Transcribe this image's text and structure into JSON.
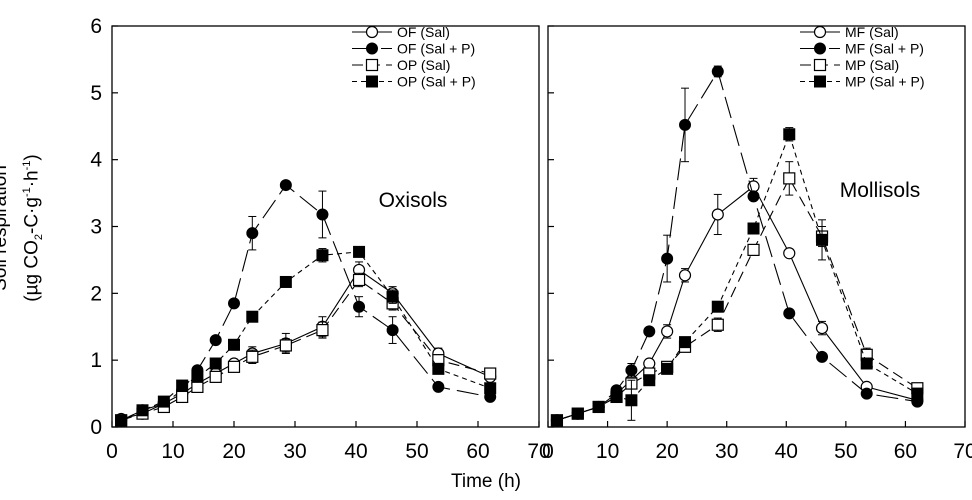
{
  "axis_titles": {
    "x": "Time (h)",
    "y_line1": "Soil respiration",
    "y_prefix": "(µg CO",
    "y_sub": "2",
    "y_mid1": "-C·g",
    "y_sup1": "-1",
    "y_mid2": "·h",
    "y_sup2": "-1",
    "y_suffix": ")"
  },
  "chart_data": [
    {
      "type": "line",
      "annotation": "Oxisols",
      "xlabel": "Time (h)",
      "ylabel": "Soil respiration (µg CO2-C·g-1·h-1)",
      "xlim": [
        0,
        70
      ],
      "ylim": [
        0,
        6
      ],
      "xticks": [
        0,
        10,
        20,
        30,
        40,
        50,
        60,
        70
      ],
      "yticks": [
        0,
        1,
        2,
        3,
        4,
        5,
        6
      ],
      "grid": false,
      "legend_position": "top-right",
      "series": [
        {
          "name": "OF (Sal)",
          "marker": "open-circle",
          "dash": "solid",
          "x": [
            1.5,
            5,
            8.5,
            11.5,
            14,
            17,
            20,
            23,
            28.5,
            34.5,
            40.5,
            46,
            53.5,
            62
          ],
          "y": [
            0.12,
            0.2,
            0.35,
            0.5,
            0.65,
            0.8,
            0.95,
            1.1,
            1.25,
            1.5,
            2.35,
            2.0,
            1.1,
            0.75
          ],
          "err": [
            0,
            0,
            0,
            0,
            0,
            0,
            0,
            0.1,
            0.15,
            0.15,
            0.12,
            0.1,
            0.08,
            0.06
          ]
        },
        {
          "name": "OF (Sal + P)",
          "marker": "filled-circle",
          "dash": "long-dash",
          "x": [
            1.5,
            5,
            8.5,
            11.5,
            14,
            17,
            20,
            23,
            28.5,
            34.5,
            40.5,
            46,
            53.5,
            62
          ],
          "y": [
            0.1,
            0.25,
            0.35,
            0.55,
            0.85,
            1.3,
            1.85,
            2.9,
            3.62,
            3.18,
            1.8,
            1.45,
            0.6,
            0.45
          ],
          "err": [
            0,
            0,
            0,
            0,
            0,
            0,
            0,
            0.25,
            0.05,
            0.35,
            0.15,
            0.2,
            0,
            0
          ]
        },
        {
          "name": "OP (Sal)",
          "marker": "open-square",
          "dash": "dash",
          "x": [
            1.5,
            5,
            8.5,
            11.5,
            14,
            17,
            20,
            23,
            28.5,
            34.5,
            40.5,
            46,
            53.5,
            62
          ],
          "y": [
            0.1,
            0.2,
            0.3,
            0.45,
            0.6,
            0.75,
            0.9,
            1.05,
            1.22,
            1.45,
            2.2,
            1.85,
            1.0,
            0.8
          ],
          "err": [
            0,
            0,
            0,
            0,
            0,
            0,
            0,
            0.1,
            0.1,
            0.12,
            0.1,
            0.1,
            0.08,
            0.06
          ]
        },
        {
          "name": "OP (Sal + P)",
          "marker": "filled-square",
          "dash": "short-dash",
          "x": [
            1.5,
            5,
            8.5,
            11.5,
            14,
            17,
            20,
            23,
            28.5,
            34.5,
            40.5,
            46,
            53.5,
            62
          ],
          "y": [
            0.1,
            0.25,
            0.38,
            0.62,
            0.75,
            0.95,
            1.23,
            1.65,
            2.17,
            2.57,
            2.62,
            1.95,
            0.87,
            0.58
          ],
          "err": [
            0,
            0,
            0,
            0,
            0,
            0,
            0,
            0,
            0,
            0.1,
            0.05,
            0.1,
            0,
            0
          ]
        }
      ]
    },
    {
      "type": "line",
      "annotation": "Mollisols",
      "xlabel": "Time (h)",
      "ylabel": "Soil respiration (µg CO2-C·g-1·h-1)",
      "xlim": [
        0,
        70
      ],
      "ylim": [
        0,
        6
      ],
      "xticks": [
        0,
        10,
        20,
        30,
        40,
        50,
        60,
        70
      ],
      "yticks": [
        0,
        1,
        2,
        3,
        4,
        5,
        6
      ],
      "grid": false,
      "legend_position": "top-right",
      "series": [
        {
          "name": "MF (Sal)",
          "marker": "open-circle",
          "dash": "solid",
          "x": [
            1.5,
            5,
            8.5,
            11.5,
            14,
            17,
            20,
            23,
            28.5,
            34.5,
            40.5,
            46,
            53.5,
            62
          ],
          "y": [
            0.1,
            0.2,
            0.3,
            0.5,
            0.7,
            0.95,
            1.43,
            2.27,
            3.18,
            3.6,
            2.6,
            1.48,
            0.6,
            0.4
          ],
          "err": [
            0,
            0,
            0,
            0,
            0,
            0,
            0.1,
            0.1,
            0.3,
            0.12,
            0,
            0.1,
            0,
            0
          ]
        },
        {
          "name": "MF (Sal + P)",
          "marker": "filled-circle",
          "dash": "long-dash",
          "x": [
            1.5,
            5,
            8.5,
            11.5,
            14,
            17,
            20,
            23,
            28.5,
            34.5,
            40.5,
            46,
            53.5,
            62
          ],
          "y": [
            0.1,
            0.2,
            0.3,
            0.55,
            0.85,
            1.43,
            2.52,
            4.52,
            5.32,
            3.45,
            1.7,
            1.05,
            0.5,
            0.38
          ],
          "err": [
            0,
            0,
            0,
            0,
            0.1,
            0,
            0.35,
            0.55,
            0.08,
            0,
            0,
            0,
            0,
            0
          ]
        },
        {
          "name": "MP (Sal)",
          "marker": "open-square",
          "dash": "dash",
          "x": [
            1.5,
            5,
            8.5,
            11.5,
            14,
            17,
            20,
            23,
            28.5,
            34.5,
            40.5,
            46,
            53.5,
            62
          ],
          "y": [
            0.1,
            0.2,
            0.3,
            0.45,
            0.65,
            0.8,
            0.9,
            1.2,
            1.53,
            2.65,
            3.72,
            2.85,
            1.08,
            0.58
          ],
          "err": [
            0,
            0,
            0,
            0,
            0,
            0,
            0,
            0,
            0.1,
            0,
            0.25,
            0.15,
            0.1,
            0
          ]
        },
        {
          "name": "MP (Sal + P)",
          "marker": "filled-square",
          "dash": "short-dash",
          "x": [
            1.5,
            5,
            8.5,
            11.5,
            14,
            17,
            20,
            23,
            28.5,
            34.5,
            40.5,
            46,
            53.5,
            62
          ],
          "y": [
            0.1,
            0.2,
            0.3,
            0.45,
            0.4,
            0.7,
            0.87,
            1.27,
            1.8,
            2.97,
            4.38,
            2.8,
            0.95,
            0.5
          ],
          "err": [
            0,
            0,
            0,
            0,
            0.3,
            0,
            0,
            0,
            0,
            0,
            0.1,
            0.3,
            0,
            0
          ]
        }
      ]
    }
  ]
}
